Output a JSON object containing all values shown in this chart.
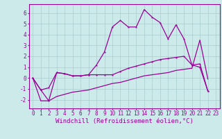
{
  "bg_color": "#cceaea",
  "line_color": "#990099",
  "grid_color": "#aacccc",
  "xlabel": "Windchill (Refroidissement éolien,°C)",
  "xlabel_fontsize": 6.5,
  "tick_fontsize": 5.5,
  "xticks": [
    0,
    1,
    2,
    3,
    4,
    5,
    6,
    7,
    8,
    9,
    10,
    11,
    12,
    13,
    14,
    15,
    16,
    17,
    18,
    19,
    20,
    21,
    22,
    23
  ],
  "yticks": [
    -2,
    -1,
    0,
    1,
    2,
    3,
    4,
    5,
    6
  ],
  "ylim": [
    -2.8,
    6.8
  ],
  "xlim": [
    -0.5,
    23.5
  ],
  "line1_y": [
    0.0,
    -1.1,
    -2.1,
    0.5,
    0.4,
    0.2,
    0.2,
    0.3,
    1.2,
    2.4,
    4.7,
    5.3,
    4.7,
    4.7,
    6.3,
    5.6,
    5.1,
    3.6,
    4.9,
    3.6,
    1.2,
    1.0,
    -1.2,
    null
  ],
  "line2_y": [
    0.0,
    -1.1,
    -0.9,
    0.5,
    0.4,
    0.2,
    0.2,
    0.3,
    0.3,
    0.3,
    0.3,
    0.6,
    0.9,
    1.1,
    1.3,
    1.5,
    1.7,
    1.8,
    1.9,
    2.0,
    1.2,
    1.3,
    -1.2,
    null
  ],
  "line3_y": [
    0.0,
    -2.1,
    -2.1,
    -1.7,
    -1.5,
    -1.3,
    -1.2,
    -1.1,
    -0.9,
    -0.7,
    -0.5,
    -0.4,
    -0.2,
    0.0,
    0.2,
    0.3,
    0.4,
    0.5,
    0.7,
    0.8,
    0.9,
    3.5,
    -0.1,
    null
  ]
}
